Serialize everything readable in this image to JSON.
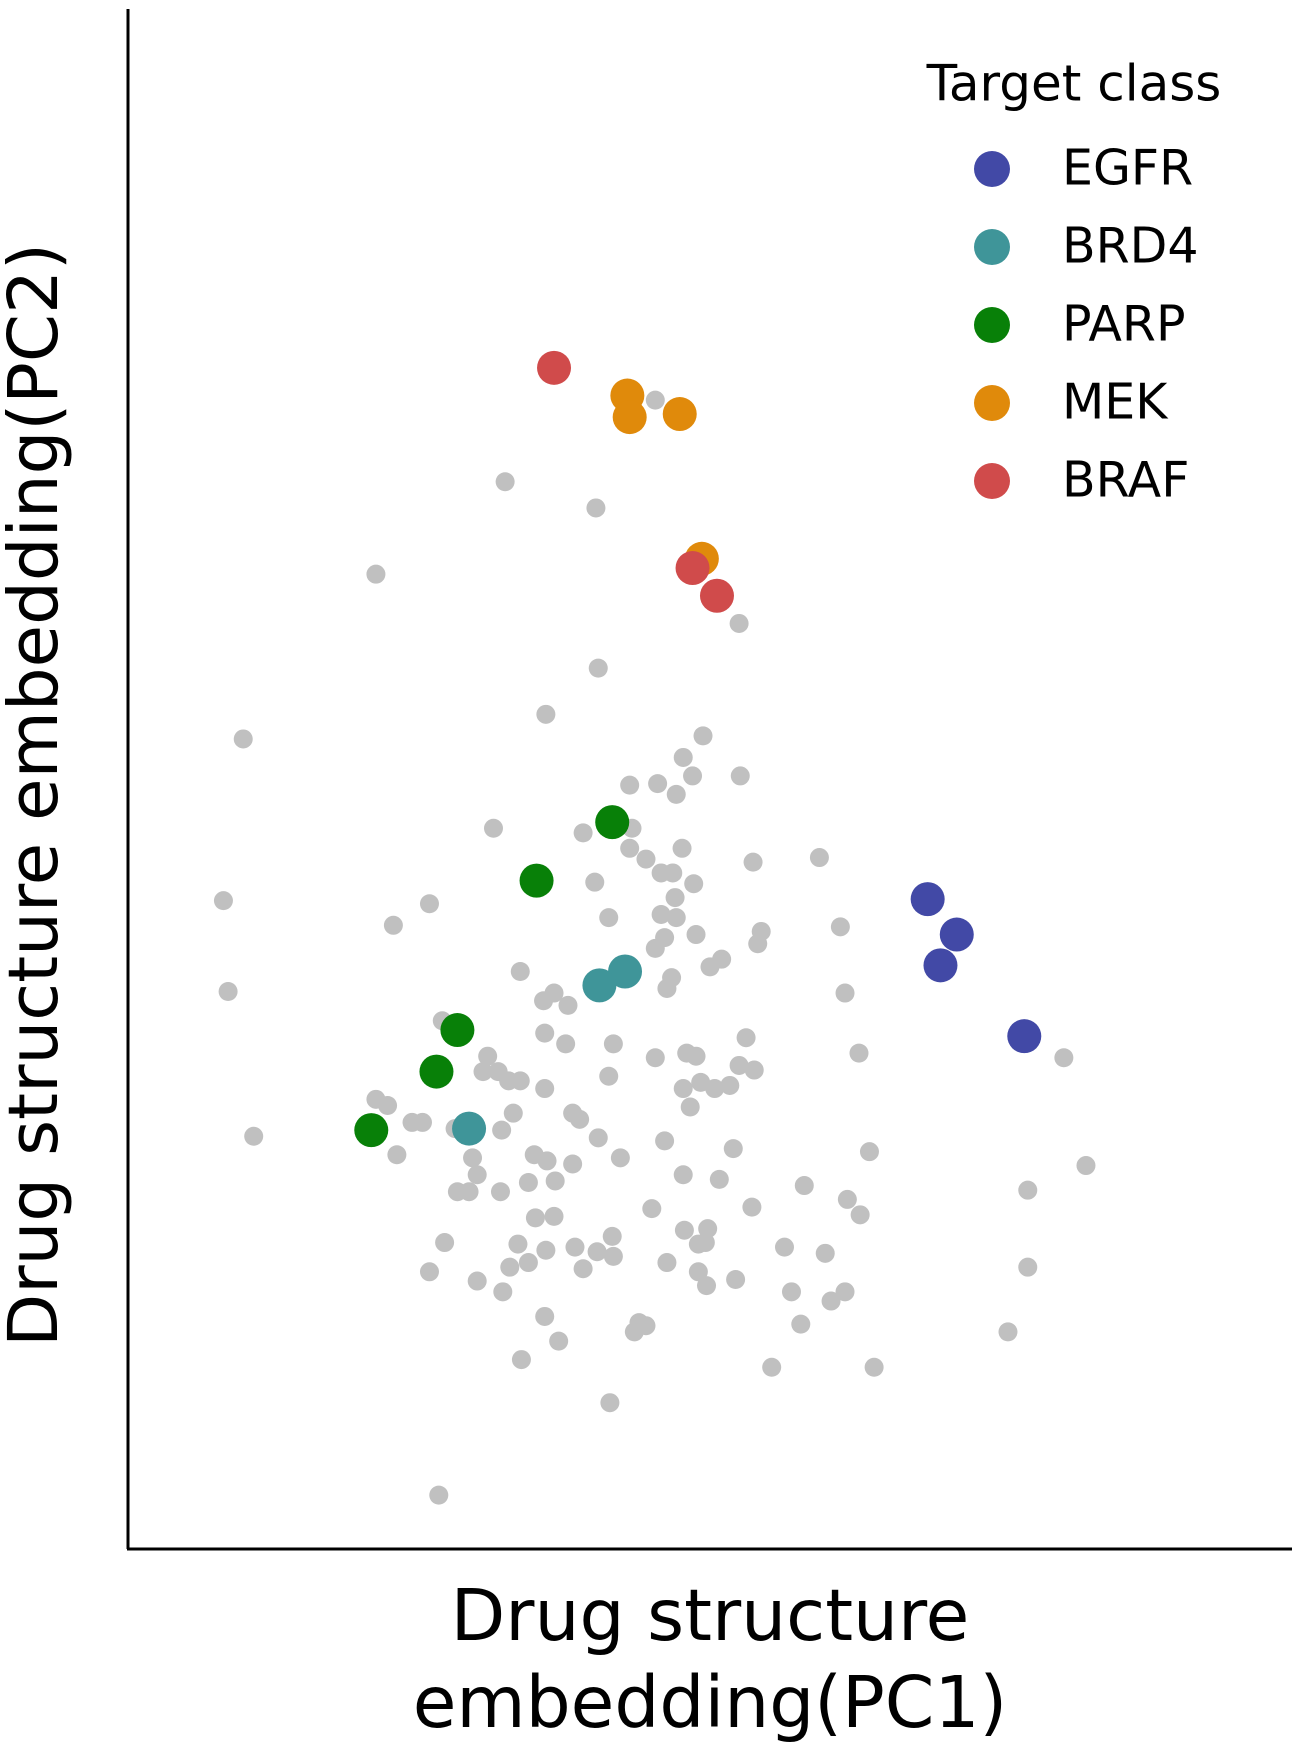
{
  "chart_data": {
    "type": "scatter",
    "x_label": "Drug structure embedding(PC1)",
    "y_label": "Drug structure embedding(PC2)",
    "legend_title": "Target class",
    "legend_position": "upper right",
    "xlim": [
      0,
      100
    ],
    "ylim": [
      0,
      100
    ],
    "series": [
      {
        "color": "#c0c0c0",
        "x": [
          45.3,
          32.4,
          40.2,
          21.3,
          52.5,
          40.4,
          35.9,
          9.9,
          49.4,
          47.7,
          43.1,
          45.5,
          48.5,
          52.6,
          47.1,
          31.4,
          39.1,
          43.3,
          47.6,
          43.1,
          44.5,
          45.8,
          46.8,
          48.6,
          53.7,
          59.4,
          8.2,
          25.9,
          40.1,
          47.0,
          45.8,
          47.1,
          48.8,
          54.4,
          61.2,
          22.8,
          41.3,
          46.1,
          45.3,
          54.1,
          51.0,
          50.0,
          33.7,
          46.7,
          46.3,
          61.6,
          8.6,
          36.6,
          35.7,
          37.8,
          27.0,
          35.8,
          53.1,
          37.6,
          41.7,
          30.9,
          48.0,
          48.8,
          45.3,
          52.5,
          62.8,
          80.4,
          30.5,
          31.8,
          33.7,
          32.7,
          53.8,
          41.3,
          35.8,
          47.7,
          49.2,
          50.4,
          51.7,
          21.3,
          22.3,
          48.3,
          33.1,
          38.2,
          38.8,
          24.4,
          25.3,
          28.1,
          32.1,
          40.4,
          46.1,
          10.8,
          52.0,
          63.7,
          23.1,
          29.6,
          34.9,
          36.0,
          38.2,
          42.3,
          82.3,
          30.0,
          47.7,
          50.8,
          34.4,
          36.7,
          28.3,
          29.3,
          32.0,
          58.1,
          77.3,
          61.8,
          45.0,
          53.6,
          62.9,
          35.0,
          36.6,
          47.8,
          49.8,
          41.6,
          27.2,
          33.5,
          35.9,
          38.4,
          40.3,
          34.4,
          41.7,
          49.0,
          49.6,
          56.4,
          59.9,
          77.3,
          25.9,
          32.8,
          39.1,
          46.3,
          49.0,
          30.0,
          52.2,
          32.2,
          49.7,
          57.0,
          61.6,
          60.4,
          35.8,
          43.9,
          44.5,
          43.5,
          57.8,
          75.6,
          37.0,
          33.8,
          55.3,
          64.1,
          41.4,
          26.7
        ],
        "y": [
          74.6,
          69.3,
          67.6,
          63.3,
          60.1,
          57.2,
          54.2,
          52.6,
          52.8,
          51.4,
          49.6,
          49.7,
          50.2,
          50.2,
          49.0,
          46.8,
          46.5,
          46.8,
          45.5,
          45.5,
          44.8,
          43.9,
          43.9,
          43.2,
          44.6,
          44.9,
          42.1,
          41.9,
          43.3,
          42.3,
          41.2,
          41.0,
          39.9,
          40.1,
          40.4,
          40.5,
          41.0,
          39.7,
          39.0,
          39.3,
          38.3,
          37.8,
          37.5,
          37.1,
          36.4,
          36.1,
          36.2,
          36.1,
          35.6,
          35.3,
          34.3,
          33.5,
          33.2,
          32.8,
          32.8,
          32.0,
          32.2,
          32.0,
          31.9,
          31.4,
          32.2,
          31.9,
          31.0,
          31.0,
          30.4,
          30.4,
          31.1,
          30.7,
          29.9,
          29.9,
          30.3,
          29.9,
          30.1,
          29.2,
          28.8,
          28.7,
          28.3,
          28.3,
          27.9,
          27.7,
          27.7,
          27.3,
          27.2,
          26.7,
          26.5,
          26.8,
          26.0,
          25.8,
          25.6,
          25.4,
          25.6,
          25.2,
          25.0,
          25.4,
          24.9,
          24.3,
          24.3,
          24.0,
          23.8,
          23.9,
          23.2,
          23.2,
          23.2,
          23.6,
          23.3,
          22.7,
          22.1,
          22.2,
          21.7,
          21.5,
          21.6,
          20.7,
          20.8,
          20.3,
          19.9,
          19.8,
          19.4,
          19.6,
          19.3,
          18.6,
          19.0,
          19.8,
          19.9,
          19.6,
          19.2,
          18.3,
          18.0,
          18.3,
          18.2,
          18.6,
          18.0,
          17.4,
          17.5,
          16.7,
          17.1,
          16.7,
          16.7,
          16.1,
          15.1,
          14.7,
          14.5,
          14.1,
          14.6,
          14.1,
          13.5,
          12.3,
          11.8,
          11.8,
          9.5,
          3.5
        ]
      },
      {
        "name": "EGFR",
        "color": "#4249a6",
        "x": [
          68.7,
          71.2,
          69.8,
          77.0
        ],
        "y": [
          42.2,
          39.9,
          37.9,
          33.3
        ]
      },
      {
        "name": "BRD4",
        "color": "#3f9599",
        "x": [
          42.7,
          40.5,
          29.3
        ],
        "y": [
          37.5,
          36.6,
          27.3
        ]
      },
      {
        "name": "PARP",
        "color": "#088008",
        "x": [
          41.6,
          35.1,
          28.3,
          26.5,
          20.9
        ],
        "y": [
          47.2,
          43.4,
          33.7,
          31.0,
          27.2
        ]
      },
      {
        "name": "MEK",
        "color": "#e08a0b",
        "x": [
          42.9,
          43.1,
          47.4,
          49.3
        ],
        "y": [
          74.9,
          73.5,
          73.7,
          64.3
        ]
      },
      {
        "name": "BRAF",
        "color": "#d04b4b",
        "x": [
          36.6,
          48.5,
          50.6
        ],
        "y": [
          76.7,
          63.7,
          61.9
        ]
      }
    ]
  }
}
